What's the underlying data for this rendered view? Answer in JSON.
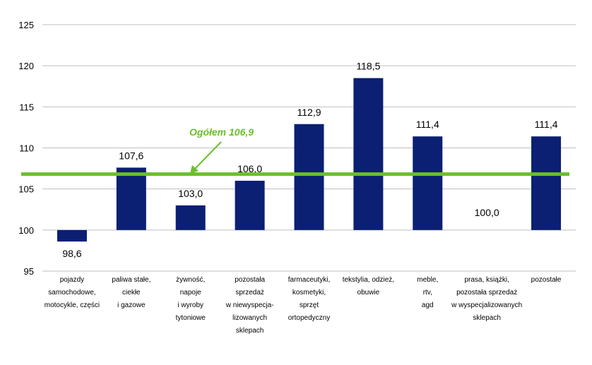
{
  "chart_data": {
    "type": "bar",
    "title": "",
    "xlabel": "",
    "ylabel": "",
    "ylim": [
      95,
      125
    ],
    "yticks": [
      95,
      100,
      105,
      110,
      115,
      120,
      125
    ],
    "y_tick_labels": [
      "95",
      "100",
      "105",
      "110",
      "115",
      "120",
      "125"
    ],
    "grid": true,
    "baseline": 100,
    "bar_color": "#0b1f73",
    "categories": [
      [
        "pojazdy",
        "samochodowe,",
        "motocykle, części"
      ],
      [
        "paliwa stałe,",
        "ciekłe",
        "i gazowe"
      ],
      [
        "żywność,",
        "napoje",
        "i wyroby",
        "tytoniowe"
      ],
      [
        "pozostała",
        "sprzedaż",
        "w niewyspecja-",
        "lizowanych",
        "sklepach"
      ],
      [
        "farmaceutyki,",
        "kosmetyki,",
        "sprzęt",
        "ortopedyczny"
      ],
      [
        "tekstylia, odzież,",
        "obuwie"
      ],
      [
        "meble,",
        "rtv,",
        "agd"
      ],
      [
        "prasa, książki,",
        "pozostała sprzedaż",
        "w wyspecjalizowanych",
        "sklepach"
      ],
      [
        "pozostałe"
      ]
    ],
    "values": [
      98.6,
      107.6,
      103.0,
      106.0,
      112.9,
      118.5,
      111.4,
      100.0,
      111.4
    ],
    "data_labels": [
      "98,6",
      "107,6",
      "103,0",
      "106,0",
      "112,9",
      "118,5",
      "111,4",
      "100,0",
      "111,4"
    ],
    "reference_line": {
      "value": 106.9,
      "label": "Ogółem 106,9",
      "color": "#6abf2a"
    }
  }
}
